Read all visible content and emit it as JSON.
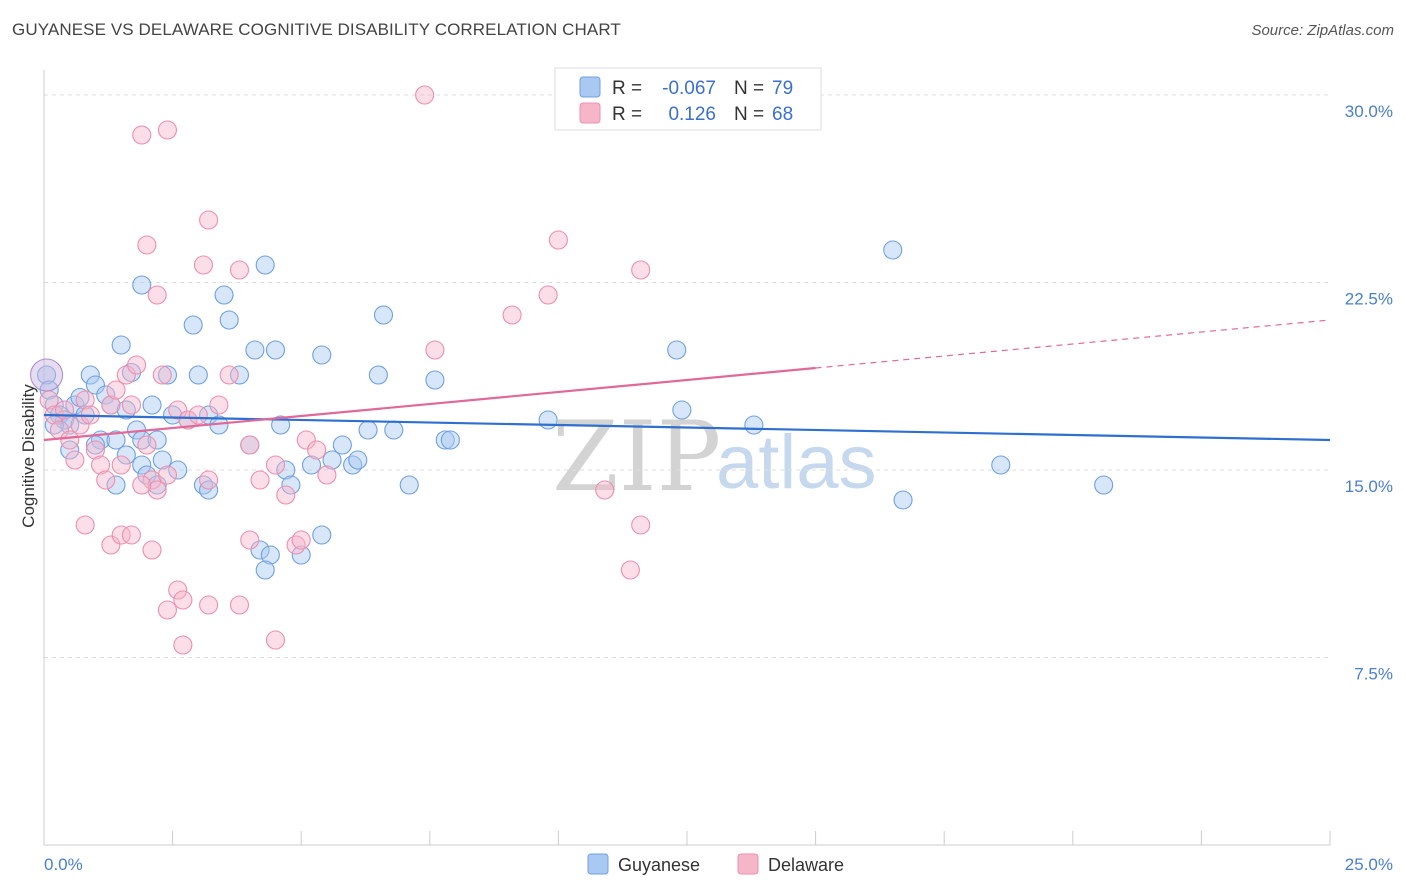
{
  "title": "GUYANESE VS DELAWARE COGNITIVE DISABILITY CORRELATION CHART",
  "source": "Source: ZipAtlas.com",
  "watermark": {
    "zip": "ZIP",
    "atlas": "atlas"
  },
  "legend": {
    "rows": [
      {
        "r_label": "R =",
        "r_value": "-0.067",
        "n_label": "N =",
        "n_value": "79",
        "color": "#a9c8f2"
      },
      {
        "r_label": "R =",
        "r_value": "0.126",
        "n_label": "N =",
        "n_value": "68",
        "color": "#f6b6c9"
      }
    ]
  },
  "chart_data": {
    "type": "scatter",
    "title": "GUYANESE VS DELAWARE COGNITIVE DISABILITY CORRELATION CHART",
    "ylabel": "Cognitive Disability",
    "xlabel": "",
    "xlim": [
      0,
      25
    ],
    "ylim": [
      0,
      31
    ],
    "x_tick_labels": [
      "0.0%",
      "25.0%"
    ],
    "y_ticks": [
      7.5,
      15.0,
      22.5,
      30.0
    ],
    "y_tick_labels": [
      "7.5%",
      "15.0%",
      "22.5%",
      "30.0%"
    ],
    "grid": true,
    "legend_position": "bottom-center",
    "series": [
      {
        "name": "Guyanese",
        "color": "#6fa0e0",
        "fill": "#a9c8f2",
        "trend": {
          "x0": 0,
          "y0": 17.2,
          "x1": 25,
          "y1": 16.2,
          "solid_until": 25
        },
        "points": [
          [
            0.05,
            18.8
          ],
          [
            0.1,
            18.2
          ],
          [
            0.2,
            17.6
          ],
          [
            0.3,
            17.2
          ],
          [
            0.4,
            17.0
          ],
          [
            0.5,
            16.8
          ],
          [
            0.6,
            17.6
          ],
          [
            0.7,
            17.9
          ],
          [
            0.2,
            16.8
          ],
          [
            0.5,
            15.8
          ],
          [
            0.9,
            18.8
          ],
          [
            1.0,
            18.4
          ],
          [
            1.2,
            18.0
          ],
          [
            1.3,
            17.6
          ],
          [
            0.8,
            17.2
          ],
          [
            1.1,
            16.2
          ],
          [
            1.4,
            16.2
          ],
          [
            1.6,
            17.4
          ],
          [
            1.8,
            16.6
          ],
          [
            1.9,
            15.2
          ],
          [
            1.6,
            15.6
          ],
          [
            1.0,
            16.0
          ],
          [
            1.5,
            20.0
          ],
          [
            1.7,
            18.9
          ],
          [
            1.9,
            16.2
          ],
          [
            2.1,
            17.6
          ],
          [
            2.2,
            16.2
          ],
          [
            2.3,
            15.4
          ],
          [
            2.4,
            18.8
          ],
          [
            2.5,
            17.2
          ],
          [
            2.6,
            15.0
          ],
          [
            2.8,
            17.0
          ],
          [
            2.9,
            20.8
          ],
          [
            3.0,
            18.8
          ],
          [
            3.2,
            17.2
          ],
          [
            3.4,
            16.8
          ],
          [
            3.5,
            22.0
          ],
          [
            3.6,
            21.0
          ],
          [
            3.8,
            18.8
          ],
          [
            4.0,
            16.0
          ],
          [
            4.1,
            19.8
          ],
          [
            4.3,
            23.2
          ],
          [
            4.5,
            19.8
          ],
          [
            4.6,
            16.8
          ],
          [
            4.7,
            15.0
          ],
          [
            4.8,
            14.4
          ],
          [
            5.0,
            11.6
          ],
          [
            5.2,
            15.2
          ],
          [
            5.4,
            19.6
          ],
          [
            5.6,
            15.4
          ],
          [
            5.8,
            16.0
          ],
          [
            6.0,
            15.2
          ],
          [
            6.1,
            15.4
          ],
          [
            6.3,
            16.6
          ],
          [
            1.9,
            22.4
          ],
          [
            4.2,
            11.8
          ],
          [
            4.4,
            11.6
          ],
          [
            4.3,
            11.0
          ],
          [
            5.4,
            12.4
          ],
          [
            6.5,
            18.8
          ],
          [
            6.6,
            21.2
          ],
          [
            6.8,
            16.6
          ],
          [
            7.1,
            14.4
          ],
          [
            7.6,
            18.6
          ],
          [
            7.8,
            16.2
          ],
          [
            7.9,
            16.2
          ],
          [
            9.8,
            17.0
          ],
          [
            12.3,
            19.8
          ],
          [
            12.4,
            17.4
          ],
          [
            13.8,
            16.8
          ],
          [
            16.5,
            23.8
          ],
          [
            16.7,
            13.8
          ],
          [
            18.6,
            15.2
          ],
          [
            20.6,
            14.4
          ],
          [
            2.0,
            14.8
          ],
          [
            2.2,
            14.4
          ],
          [
            3.1,
            14.4
          ],
          [
            3.2,
            14.2
          ],
          [
            1.4,
            14.4
          ]
        ]
      },
      {
        "name": "Delaware",
        "color": "#ee8fae",
        "fill": "#f6b6c9",
        "trend": {
          "x0": 0,
          "y0": 16.2,
          "x1": 25,
          "y1": 21.0,
          "solid_until": 15.0
        },
        "points": [
          [
            0.1,
            17.8
          ],
          [
            0.2,
            17.2
          ],
          [
            0.3,
            16.6
          ],
          [
            0.4,
            17.4
          ],
          [
            0.5,
            16.2
          ],
          [
            0.6,
            15.4
          ],
          [
            0.7,
            16.8
          ],
          [
            0.8,
            17.8
          ],
          [
            0.9,
            17.2
          ],
          [
            1.0,
            15.8
          ],
          [
            1.1,
            15.2
          ],
          [
            1.2,
            14.6
          ],
          [
            1.3,
            17.6
          ],
          [
            1.4,
            18.2
          ],
          [
            1.5,
            15.2
          ],
          [
            1.6,
            18.8
          ],
          [
            1.7,
            17.6
          ],
          [
            1.8,
            19.2
          ],
          [
            2.0,
            16.0
          ],
          [
            2.1,
            14.6
          ],
          [
            2.2,
            14.2
          ],
          [
            2.3,
            18.8
          ],
          [
            2.4,
            14.8
          ],
          [
            2.6,
            17.4
          ],
          [
            2.8,
            17.0
          ],
          [
            3.0,
            17.2
          ],
          [
            3.1,
            23.2
          ],
          [
            3.2,
            14.6
          ],
          [
            3.4,
            17.6
          ],
          [
            3.6,
            18.8
          ],
          [
            3.8,
            23.0
          ],
          [
            4.0,
            16.0
          ],
          [
            4.2,
            14.6
          ],
          [
            4.5,
            15.2
          ],
          [
            4.7,
            14.0
          ],
          [
            4.9,
            12.0
          ],
          [
            5.1,
            16.2
          ],
          [
            5.3,
            15.8
          ],
          [
            5.5,
            14.8
          ],
          [
            0.8,
            12.8
          ],
          [
            1.3,
            12.0
          ],
          [
            1.5,
            12.4
          ],
          [
            1.7,
            12.4
          ],
          [
            1.9,
            14.4
          ],
          [
            2.1,
            11.8
          ],
          [
            2.6,
            10.2
          ],
          [
            2.7,
            9.8
          ],
          [
            2.4,
            9.4
          ],
          [
            3.2,
            9.6
          ],
          [
            3.8,
            9.6
          ],
          [
            4.5,
            8.2
          ],
          [
            2.7,
            8.0
          ],
          [
            4.0,
            12.2
          ],
          [
            5.0,
            12.2
          ],
          [
            2.0,
            24.0
          ],
          [
            2.2,
            22.0
          ],
          [
            3.2,
            25.0
          ],
          [
            1.9,
            28.4
          ],
          [
            2.4,
            28.6
          ],
          [
            7.4,
            30.0
          ],
          [
            7.6,
            19.8
          ],
          [
            9.1,
            21.2
          ],
          [
            9.8,
            22.0
          ],
          [
            10.0,
            24.2
          ],
          [
            10.9,
            14.2
          ],
          [
            11.6,
            23.0
          ],
          [
            11.4,
            11.0
          ],
          [
            11.6,
            12.8
          ]
        ]
      }
    ]
  }
}
